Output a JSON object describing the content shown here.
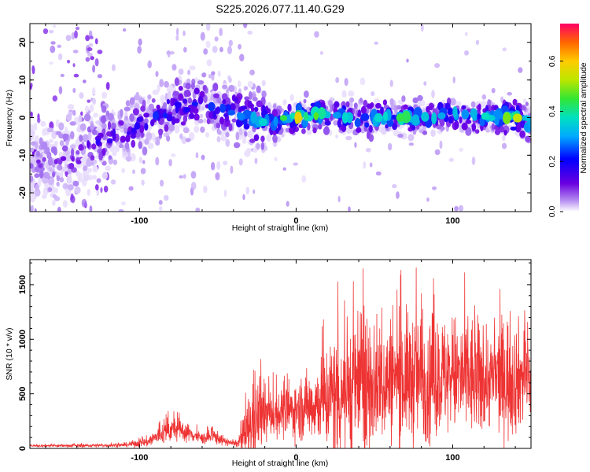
{
  "figure_title": "S225.2026.077.11.40.G29",
  "chart_data": [
    {
      "type": "heatmap",
      "title": "S225.2026.077.11.40.G29",
      "xlabel": "Height of straight line (km)",
      "ylabel": "Frequency (Hz)",
      "xlim": [
        -170,
        150
      ],
      "ylim": [
        -25,
        25
      ],
      "xticks": [
        -100,
        0,
        100
      ],
      "yticks": [
        -20,
        -10,
        0,
        10,
        20
      ],
      "colorbar": {
        "label": "Normalized spectral amplitude",
        "range": [
          0,
          0.75
        ],
        "ticks": [
          0,
          0.2,
          0.4,
          0.6
        ],
        "tick_labels": [
          "0.0",
          "0.2",
          "0.4",
          "0.6"
        ]
      },
      "ridge": {
        "description": "frequency centre of the main energy ridge vs height",
        "x": [
          -170,
          -150,
          -130,
          -110,
          -90,
          -75,
          -60,
          -45,
          -30,
          -15,
          0,
          20,
          40,
          60,
          80,
          100,
          120,
          140,
          150
        ],
        "center_hz": [
          -12,
          -12,
          -7,
          -4,
          0,
          3,
          4,
          2,
          0,
          -1,
          0,
          1,
          0,
          0,
          0,
          1,
          0,
          0,
          -1
        ],
        "peak_amplitude": [
          0.15,
          0.2,
          0.25,
          0.3,
          0.35,
          0.4,
          0.35,
          0.35,
          0.45,
          0.5,
          0.72,
          0.5,
          0.5,
          0.55,
          0.5,
          0.5,
          0.5,
          0.65,
          0.65
        ]
      }
    },
    {
      "type": "line",
      "xlabel": "Height of straight line (km)",
      "ylabel": "SNR (10 * v/v)",
      "xlim": [
        -170,
        150
      ],
      "ylim": [
        0,
        1730
      ],
      "xticks": [
        -100,
        0,
        100
      ],
      "yticks": [
        0,
        500,
        1000,
        1500
      ],
      "color": "#ee3333",
      "envelope": {
        "description": "approximate mean and spread of the noisy SNR trace",
        "x": [
          -170,
          -140,
          -110,
          -95,
          -85,
          -78,
          -70,
          -60,
          -52,
          -45,
          -38,
          -32,
          -28,
          -22,
          -15,
          -5,
          5,
          15,
          25,
          35,
          45,
          55,
          65,
          75,
          85,
          95,
          105,
          115,
          125,
          135,
          145,
          150
        ],
        "mean": [
          25,
          25,
          30,
          60,
          140,
          180,
          150,
          90,
          110,
          60,
          40,
          120,
          250,
          300,
          320,
          340,
          380,
          430,
          500,
          570,
          600,
          620,
          640,
          660,
          650,
          670,
          650,
          630,
          640,
          650,
          660,
          650
        ],
        "max": [
          40,
          50,
          60,
          150,
          320,
          380,
          300,
          180,
          240,
          120,
          80,
          550,
          1020,
          800,
          700,
          750,
          900,
          1100,
          1600,
          1700,
          1720,
          1600,
          1650,
          1720,
          1650,
          1600,
          1650,
          1620,
          1400,
          1700,
          1450,
          1400
        ]
      }
    }
  ]
}
